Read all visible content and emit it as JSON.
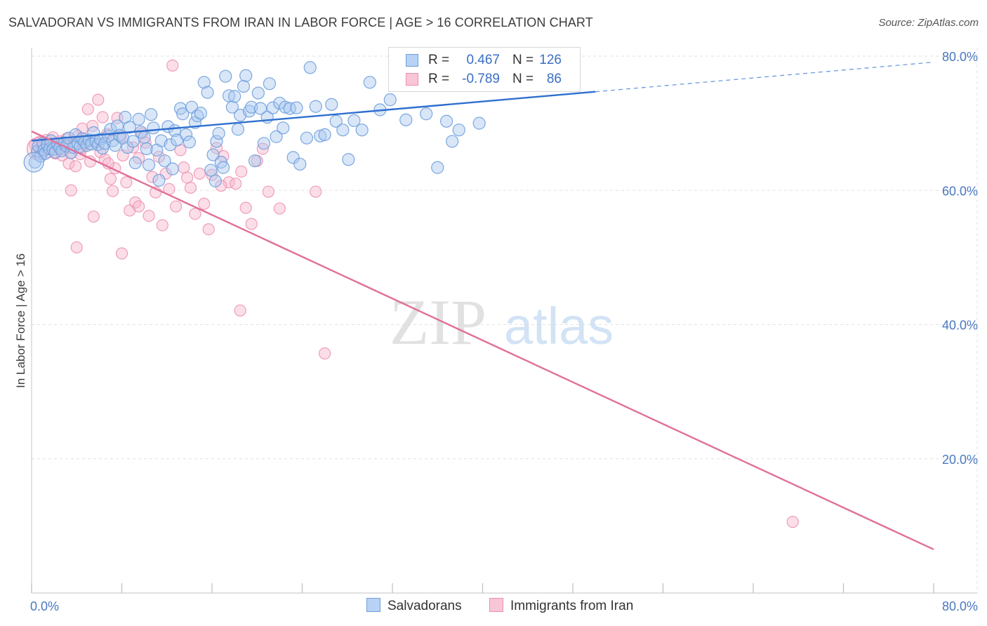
{
  "title": "SALVADORAN VS IMMIGRANTS FROM IRAN IN LABOR FORCE | AGE > 16 CORRELATION CHART",
  "source": "Source: ZipAtlas.com",
  "watermark": {
    "zip": "ZIP",
    "atlas": "atlas"
  },
  "legend_top": [
    {
      "r_label": "R =",
      "r_value": "0.467",
      "n_label": "N =",
      "n_value": "126"
    },
    {
      "r_label": "R =",
      "r_value": "-0.789",
      "n_label": "N =",
      "n_value": "86"
    }
  ],
  "legend_bottom": [
    {
      "label": "Salvadorans"
    },
    {
      "label": "Immigrants from Iran"
    }
  ],
  "colors": {
    "blue_fill": "#a9c8f0",
    "blue_stroke": "#6f9fdc",
    "blue_line": "#2f6fcf",
    "pink_fill": "#f6b6cb",
    "pink_stroke": "#ec8fb0",
    "pink_line": "#e0709a",
    "tick": "#4a78c2",
    "grid": "#e2e2e2"
  },
  "chart_data": {
    "type": "scatter",
    "title": "SALVADORAN VS IMMIGRANTS FROM IRAN IN LABOR FORCE | AGE > 16 CORRELATION CHART",
    "xlabel": "",
    "ylabel": "In Labor Force | Age > 16",
    "xlim": [
      0,
      80
    ],
    "ylim": [
      0,
      80
    ],
    "x_tick_labels": [
      "0.0%",
      "80.0%"
    ],
    "y_tick_labels": [
      "20.0%",
      "40.0%",
      "60.0%",
      "80.0%"
    ],
    "y_ticks": [
      20,
      40,
      60,
      80
    ],
    "grid": true,
    "legend_position": "top-center",
    "series": [
      {
        "name": "Salvadorans",
        "r": 0.467,
        "n": 126,
        "trend": {
          "x": [
            0,
            50
          ],
          "y": [
            67.4,
            74.7
          ],
          "dashed_to": [
            80,
            79.1
          ]
        },
        "points": [
          [
            0.3,
            64.2
          ],
          [
            0.5,
            65.8
          ],
          [
            0.6,
            66.6
          ],
          [
            0.8,
            65.1
          ],
          [
            1.0,
            67.0
          ],
          [
            1.1,
            66.0
          ],
          [
            1.2,
            65.5
          ],
          [
            1.4,
            66.8
          ],
          [
            1.6,
            66.2
          ],
          [
            1.7,
            67.4
          ],
          [
            1.9,
            66.1
          ],
          [
            2.1,
            65.7
          ],
          [
            2.3,
            66.9
          ],
          [
            2.5,
            66.3
          ],
          [
            2.7,
            65.9
          ],
          [
            2.9,
            67.1
          ],
          [
            3.1,
            66.6
          ],
          [
            3.3,
            67.8
          ],
          [
            3.5,
            65.6
          ],
          [
            3.7,
            66.4
          ],
          [
            3.9,
            68.3
          ],
          [
            4.1,
            67.0
          ],
          [
            4.3,
            66.5
          ],
          [
            4.5,
            67.7
          ],
          [
            4.7,
            67.2
          ],
          [
            4.9,
            66.7
          ],
          [
            5.1,
            67.5
          ],
          [
            5.3,
            66.9
          ],
          [
            5.5,
            68.6
          ],
          [
            5.7,
            67.3
          ],
          [
            5.9,
            66.8
          ],
          [
            6.1,
            67.6
          ],
          [
            6.3,
            66.3
          ],
          [
            6.5,
            67.0
          ],
          [
            6.8,
            68.1
          ],
          [
            7.0,
            69.1
          ],
          [
            7.2,
            67.4
          ],
          [
            7.4,
            66.7
          ],
          [
            7.6,
            69.6
          ],
          [
            7.8,
            68.2
          ],
          [
            8.1,
            67.8
          ],
          [
            8.3,
            70.9
          ],
          [
            8.5,
            66.4
          ],
          [
            8.7,
            69.4
          ],
          [
            9.0,
            67.3
          ],
          [
            9.2,
            64.1
          ],
          [
            9.5,
            70.6
          ],
          [
            9.7,
            68.7
          ],
          [
            10.0,
            67.9
          ],
          [
            10.2,
            66.2
          ],
          [
            10.4,
            63.8
          ],
          [
            10.6,
            71.3
          ],
          [
            10.8,
            69.3
          ],
          [
            11.1,
            66.0
          ],
          [
            11.3,
            61.5
          ],
          [
            11.5,
            67.4
          ],
          [
            11.8,
            64.4
          ],
          [
            12.1,
            69.5
          ],
          [
            12.3,
            66.8
          ],
          [
            12.5,
            63.2
          ],
          [
            12.7,
            68.9
          ],
          [
            12.9,
            67.5
          ],
          [
            13.2,
            72.2
          ],
          [
            13.4,
            71.4
          ],
          [
            13.7,
            68.3
          ],
          [
            14.0,
            67.2
          ],
          [
            14.2,
            72.4
          ],
          [
            14.5,
            70.1
          ],
          [
            14.7,
            71.1
          ],
          [
            15.0,
            71.5
          ],
          [
            15.3,
            76.1
          ],
          [
            15.6,
            74.6
          ],
          [
            15.9,
            63.0
          ],
          [
            16.1,
            65.3
          ],
          [
            16.3,
            61.4
          ],
          [
            16.4,
            67.3
          ],
          [
            16.6,
            68.5
          ],
          [
            16.8,
            64.2
          ],
          [
            17.0,
            63.4
          ],
          [
            17.2,
            77.0
          ],
          [
            17.5,
            74.1
          ],
          [
            17.8,
            72.4
          ],
          [
            18.0,
            74.0
          ],
          [
            18.3,
            69.1
          ],
          [
            18.5,
            71.2
          ],
          [
            18.8,
            75.5
          ],
          [
            19.0,
            77.1
          ],
          [
            19.3,
            71.8
          ],
          [
            19.5,
            72.4
          ],
          [
            19.8,
            64.4
          ],
          [
            20.1,
            74.5
          ],
          [
            20.3,
            72.2
          ],
          [
            20.6,
            67.0
          ],
          [
            20.9,
            70.9
          ],
          [
            21.1,
            75.9
          ],
          [
            21.4,
            72.3
          ],
          [
            21.7,
            68.0
          ],
          [
            22.0,
            73.0
          ],
          [
            22.3,
            69.3
          ],
          [
            22.5,
            72.4
          ],
          [
            22.9,
            72.2
          ],
          [
            23.2,
            64.9
          ],
          [
            23.5,
            72.3
          ],
          [
            23.8,
            63.9
          ],
          [
            24.4,
            67.8
          ],
          [
            25.2,
            72.5
          ],
          [
            25.6,
            68.1
          ],
          [
            26.0,
            68.3
          ],
          [
            26.6,
            72.8
          ],
          [
            27.0,
            70.3
          ],
          [
            27.6,
            69.0
          ],
          [
            28.1,
            64.6
          ],
          [
            28.6,
            70.4
          ],
          [
            29.3,
            69.0
          ],
          [
            30.0,
            76.1
          ],
          [
            30.9,
            72.0
          ],
          [
            31.8,
            73.5
          ],
          [
            33.2,
            70.5
          ],
          [
            33.9,
            75.6
          ],
          [
            35.0,
            71.4
          ],
          [
            36.0,
            63.4
          ],
          [
            36.8,
            70.3
          ],
          [
            37.3,
            67.3
          ],
          [
            37.9,
            69.0
          ],
          [
            39.7,
            70.0
          ],
          [
            24.7,
            78.3
          ]
        ]
      },
      {
        "name": "Immigrants from Iran",
        "r": -0.789,
        "n": 86,
        "trend": {
          "x": [
            0,
            80
          ],
          "y": [
            68.8,
            6.5
          ]
        },
        "points": [
          [
            0.3,
            66.8
          ],
          [
            0.5,
            65.9
          ],
          [
            0.7,
            67.2
          ],
          [
            0.9,
            66.4
          ],
          [
            1.1,
            66.0
          ],
          [
            1.3,
            67.5
          ],
          [
            1.5,
            65.7
          ],
          [
            1.7,
            66.9
          ],
          [
            1.9,
            67.9
          ],
          [
            2.1,
            65.5
          ],
          [
            2.3,
            66.6
          ],
          [
            2.5,
            67.3
          ],
          [
            2.7,
            65.2
          ],
          [
            2.9,
            66.1
          ],
          [
            3.1,
            67.7
          ],
          [
            3.3,
            64.0
          ],
          [
            3.5,
            65.6
          ],
          [
            3.7,
            66.8
          ],
          [
            3.9,
            63.6
          ],
          [
            4.1,
            68.1
          ],
          [
            4.3,
            65.4
          ],
          [
            4.5,
            66.3
          ],
          [
            4.8,
            67.0
          ],
          [
            5.0,
            72.1
          ],
          [
            5.2,
            64.3
          ],
          [
            5.4,
            69.6
          ],
          [
            5.6,
            67.4
          ],
          [
            5.9,
            73.5
          ],
          [
            6.1,
            65.7
          ],
          [
            6.3,
            70.9
          ],
          [
            6.5,
            64.6
          ],
          [
            6.7,
            68.4
          ],
          [
            7.0,
            61.7
          ],
          [
            7.2,
            59.9
          ],
          [
            7.4,
            63.3
          ],
          [
            7.6,
            70.8
          ],
          [
            7.9,
            68.0
          ],
          [
            8.1,
            65.2
          ],
          [
            8.4,
            61.2
          ],
          [
            8.7,
            57.0
          ],
          [
            9.0,
            66.4
          ],
          [
            9.2,
            58.2
          ],
          [
            9.5,
            64.8
          ],
          [
            9.8,
            68.5
          ],
          [
            10.1,
            67.1
          ],
          [
            10.4,
            56.2
          ],
          [
            10.7,
            62.0
          ],
          [
            11.0,
            59.7
          ],
          [
            11.3,
            65.0
          ],
          [
            11.6,
            54.8
          ],
          [
            11.9,
            62.5
          ],
          [
            12.2,
            60.2
          ],
          [
            12.5,
            78.6
          ],
          [
            12.8,
            57.6
          ],
          [
            13.2,
            66.0
          ],
          [
            13.5,
            63.4
          ],
          [
            13.8,
            61.9
          ],
          [
            14.1,
            60.4
          ],
          [
            14.5,
            56.5
          ],
          [
            14.9,
            62.5
          ],
          [
            15.3,
            58.0
          ],
          [
            15.7,
            54.2
          ],
          [
            16.0,
            62.3
          ],
          [
            16.4,
            66.3
          ],
          [
            17.0,
            65.1
          ],
          [
            17.5,
            61.2
          ],
          [
            18.1,
            61.0
          ],
          [
            18.6,
            62.8
          ],
          [
            19.0,
            57.4
          ],
          [
            19.5,
            55.0
          ],
          [
            20.0,
            64.4
          ],
          [
            20.5,
            66.2
          ],
          [
            21.0,
            59.8
          ],
          [
            22.0,
            57.3
          ],
          [
            4.0,
            51.5
          ],
          [
            8.0,
            50.6
          ],
          [
            18.5,
            42.1
          ],
          [
            26.0,
            35.7
          ],
          [
            3.5,
            60.0
          ],
          [
            4.5,
            69.2
          ],
          [
            5.5,
            56.1
          ],
          [
            6.8,
            64.0
          ],
          [
            9.5,
            57.6
          ],
          [
            16.8,
            60.7
          ],
          [
            25.2,
            59.8
          ],
          [
            67.5,
            10.6
          ]
        ]
      }
    ]
  }
}
